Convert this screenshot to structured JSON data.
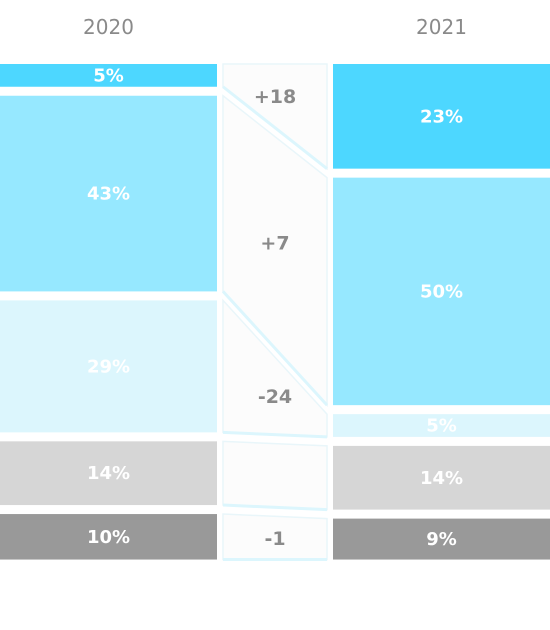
{
  "chart_data": {
    "type": "stacked-bar-comparison",
    "columns": [
      "2020",
      "2021"
    ],
    "segments": [
      {
        "color": "#4dd7ff",
        "values": [
          5,
          23
        ],
        "labels": [
          "5%",
          "23%"
        ],
        "delta": "+18"
      },
      {
        "color": "#96e8ff",
        "values": [
          43,
          50
        ],
        "labels": [
          "43%",
          "50%"
        ],
        "delta": "+7"
      },
      {
        "color": "#dcf6fd",
        "values": [
          29,
          5
        ],
        "labels": [
          "29%",
          "5%"
        ],
        "delta": "-24"
      },
      {
        "color": "#d6d6d6",
        "values": [
          14,
          14
        ],
        "labels": [
          "14%",
          "14%"
        ],
        "delta": ""
      },
      {
        "color": "#999999",
        "values": [
          10,
          9
        ],
        "labels": [
          "10%",
          "9%"
        ],
        "delta": "-1"
      }
    ],
    "colors": {
      "text_muted": "#8a8a8a",
      "text_light": "#ffffff",
      "connector": "#dcf6fd"
    }
  }
}
